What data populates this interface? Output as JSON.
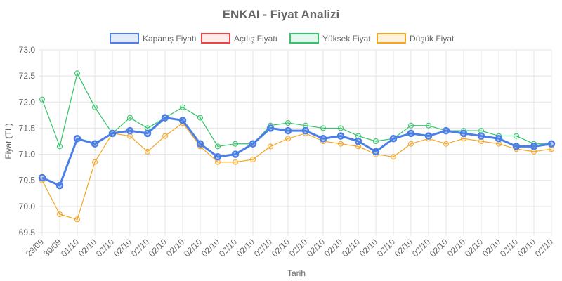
{
  "chart_data": {
    "type": "line",
    "title": "ENKAI - Fiyat Analizi",
    "xlabel": "Tarih",
    "ylabel": "Fiyat (TL)",
    "ylim": [
      69.5,
      73.0
    ],
    "yticks": [
      "69.5",
      "70.0",
      "70.5",
      "71.0",
      "71.5",
      "72.0",
      "72.5",
      "73.0"
    ],
    "grid": true,
    "legend_position": "top",
    "categories": [
      "29/09",
      "30/09",
      "01/10",
      "02/10",
      "02/10",
      "02/10",
      "02/10",
      "02/10",
      "02/10",
      "02/10",
      "02/10",
      "02/10",
      "02/10",
      "02/10",
      "02/10",
      "02/10",
      "02/10",
      "02/10",
      "02/10",
      "02/10",
      "02/10",
      "02/10",
      "02/10",
      "02/10",
      "02/10",
      "02/10",
      "02/10",
      "02/10",
      "02/10",
      "02/10"
    ],
    "series": [
      {
        "name": "Kapanış Fiyatı",
        "color": "#4a7fe8",
        "fill": "rgba(74,127,232,0.15)",
        "values": [
          70.55,
          70.4,
          71.3,
          71.2,
          71.4,
          71.45,
          71.4,
          71.7,
          71.65,
          71.2,
          70.95,
          71.0,
          71.2,
          71.5,
          71.45,
          71.45,
          71.3,
          71.35,
          71.25,
          71.05,
          71.3,
          71.4,
          71.35,
          71.45,
          71.4,
          71.35,
          71.3,
          71.15,
          71.15,
          71.2
        ]
      },
      {
        "name": "Açılış Fiyatı",
        "color": "#ef4444",
        "fill": "rgba(239,68,68,0.1)",
        "values": [
          70.55,
          70.4,
          71.3,
          71.2,
          71.4,
          71.45,
          71.4,
          71.7,
          71.65,
          71.2,
          70.95,
          71.0,
          71.2,
          71.5,
          71.45,
          71.45,
          71.3,
          71.35,
          71.25,
          71.05,
          71.3,
          71.4,
          71.35,
          71.45,
          71.4,
          71.35,
          71.3,
          71.15,
          71.15,
          71.2
        ]
      },
      {
        "name": "Yüksek Fiyat",
        "color": "#34c46a",
        "fill": "rgba(52,196,106,0.12)",
        "values": [
          72.05,
          71.15,
          72.55,
          71.9,
          71.4,
          71.7,
          71.5,
          71.7,
          71.9,
          71.7,
          71.15,
          71.2,
          71.2,
          71.55,
          71.6,
          71.55,
          71.5,
          71.5,
          71.35,
          71.25,
          71.3,
          71.55,
          71.55,
          71.45,
          71.45,
          71.45,
          71.35,
          71.35,
          71.2,
          71.2
        ]
      },
      {
        "name": "Düşük Fiyat",
        "color": "#f5a623",
        "fill": "rgba(245,166,35,0.15)",
        "values": [
          70.5,
          69.85,
          69.75,
          70.85,
          71.4,
          71.35,
          71.05,
          71.35,
          71.6,
          71.15,
          70.85,
          70.85,
          70.9,
          71.15,
          71.3,
          71.4,
          71.25,
          71.2,
          71.15,
          71.0,
          70.95,
          71.2,
          71.3,
          71.2,
          71.3,
          71.25,
          71.2,
          71.1,
          71.05,
          71.1
        ]
      }
    ]
  }
}
